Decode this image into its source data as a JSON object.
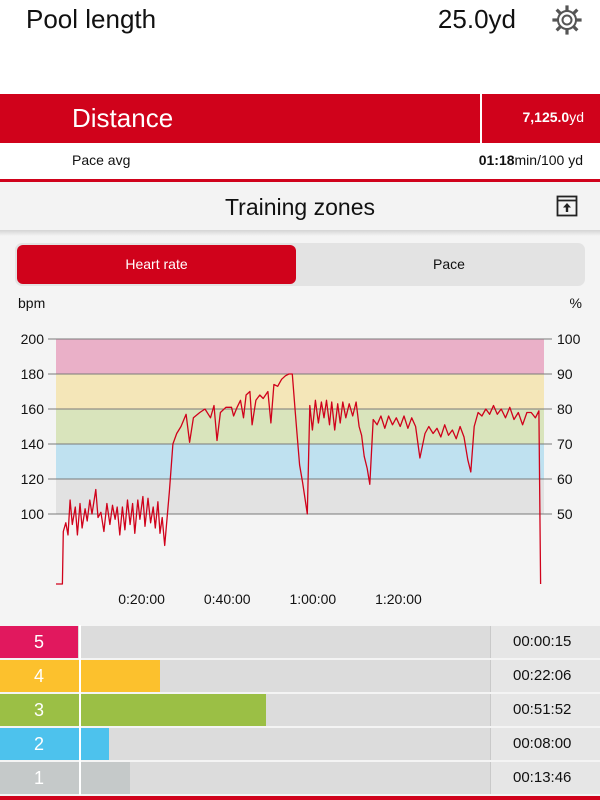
{
  "settings": {
    "pool_label": "Pool length",
    "pool_value": "25.0yd"
  },
  "summary": {
    "distance_label": "Distance",
    "distance_value": "7,125.0",
    "distance_unit": "yd",
    "pace_label": "Pace avg",
    "pace_value": "01:18",
    "pace_unit": "min/100 yd"
  },
  "training_zones": {
    "title": "Training zones",
    "tabs": [
      {
        "label": "Heart rate",
        "selected": true
      },
      {
        "label": "Pace",
        "selected": false
      }
    ]
  },
  "zones": [
    {
      "label": "5",
      "time": "00:00:15",
      "color": "#e1185e",
      "fraction": 0.16
    },
    {
      "label": "4",
      "time": "00:22:06",
      "color": "#fcc12d",
      "fraction": 0.326
    },
    {
      "label": "3",
      "time": "00:51:52",
      "color": "#9bbf45",
      "fraction": 0.543
    },
    {
      "label": "2",
      "time": "00:08:00",
      "color": "#4dc2ed",
      "fraction": 0.222
    },
    {
      "label": "1",
      "time": "00:13:46",
      "color": "#c5c9c9",
      "fraction": 0.265
    }
  ],
  "chart_data": {
    "type": "line",
    "ylabel_left": "bpm",
    "ylabel_right": "%",
    "y_ticks_left": [
      "200",
      "180",
      "160",
      "140",
      "120",
      "100"
    ],
    "y_ticks_right": [
      "100",
      "90",
      "80",
      "70",
      "60",
      "50"
    ],
    "x_ticks": [
      "0:20:00",
      "0:40:00",
      "1:00:00",
      "1:20:00"
    ],
    "ylim": [
      60,
      200
    ],
    "xlim_minutes": [
      0,
      114
    ],
    "zone_bands": [
      {
        "zone": "5",
        "from": 180,
        "to": 200,
        "color": "#eab0c8"
      },
      {
        "zone": "4",
        "from": 160,
        "to": 180,
        "color": "#f4e6b8"
      },
      {
        "zone": "3",
        "from": 140,
        "to": 160,
        "color": "#d9e4bc"
      },
      {
        "zone": "2",
        "from": 120,
        "to": 140,
        "color": "#bfe1f0"
      },
      {
        "zone": "1",
        "from": 100,
        "to": 120,
        "color": "#e2e2e2"
      }
    ],
    "series": [
      {
        "color": "#d0021b",
        "points": [
          [
            0,
            60
          ],
          [
            1.5,
            60
          ],
          [
            1.7,
            90
          ],
          [
            2.3,
            95
          ],
          [
            2.8,
            88
          ],
          [
            3.3,
            108
          ],
          [
            3.8,
            94
          ],
          [
            4.5,
            104
          ],
          [
            5,
            88
          ],
          [
            5.6,
            106
          ],
          [
            6.1,
            92
          ],
          [
            6.8,
            103
          ],
          [
            7.3,
            96
          ],
          [
            7.9,
            108
          ],
          [
            8.4,
            100
          ],
          [
            9.3,
            114
          ],
          [
            9.8,
            98
          ],
          [
            10.5,
            101
          ],
          [
            11.2,
            90
          ],
          [
            11.9,
            106
          ],
          [
            12.6,
            94
          ],
          [
            13.2,
            105
          ],
          [
            13.8,
            97
          ],
          [
            14.3,
            104
          ],
          [
            14.9,
            88
          ],
          [
            15.5,
            104
          ],
          [
            16.1,
            91
          ],
          [
            16.7,
            108
          ],
          [
            17.3,
            94
          ],
          [
            17.9,
            106
          ],
          [
            18.4,
            89
          ],
          [
            19.1,
            108
          ],
          [
            19.6,
            97
          ],
          [
            20.3,
            110
          ],
          [
            20.8,
            93
          ],
          [
            21.5,
            109
          ],
          [
            22.1,
            95
          ],
          [
            22.7,
            104
          ],
          [
            23.2,
            92
          ],
          [
            23.8,
            107
          ],
          [
            24.3,
            89
          ],
          [
            24.8,
            98
          ],
          [
            25.4,
            82
          ],
          [
            26.5,
            113
          ],
          [
            27.3,
            140
          ],
          [
            28.2,
            146
          ],
          [
            29.2,
            150
          ],
          [
            30.4,
            157
          ],
          [
            31.2,
            141
          ],
          [
            32.1,
            155
          ],
          [
            33.6,
            158
          ],
          [
            34.8,
            160
          ],
          [
            36.1,
            155
          ],
          [
            36.9,
            162
          ],
          [
            37.6,
            142
          ],
          [
            38.4,
            158
          ],
          [
            39.7,
            161
          ],
          [
            41,
            161
          ],
          [
            41.5,
            156
          ],
          [
            42.3,
            161
          ],
          [
            43.1,
            165
          ],
          [
            43.8,
            155
          ],
          [
            44.4,
            168
          ],
          [
            45.3,
            170
          ],
          [
            45.8,
            151
          ],
          [
            46.7,
            165
          ],
          [
            47.6,
            168
          ],
          [
            48.4,
            166
          ],
          [
            49.5,
            170
          ],
          [
            50.2,
            152
          ],
          [
            50.9,
            174
          ],
          [
            51.8,
            173
          ],
          [
            52.7,
            177
          ],
          [
            53.6,
            179
          ],
          [
            54.4,
            180
          ],
          [
            55.2,
            180
          ],
          [
            55.9,
            158
          ],
          [
            56.3,
            146
          ],
          [
            56.9,
            128
          ],
          [
            57.6,
            118
          ],
          [
            58.1,
            110
          ],
          [
            58.7,
            100
          ],
          [
            59.3,
            162
          ],
          [
            59.9,
            148
          ],
          [
            60.6,
            165
          ],
          [
            61.3,
            152
          ],
          [
            62,
            164
          ],
          [
            62.6,
            155
          ],
          [
            63.2,
            165
          ],
          [
            63.9,
            151
          ],
          [
            64.4,
            164
          ],
          [
            65.1,
            148
          ],
          [
            65.8,
            163
          ],
          [
            66.4,
            152
          ],
          [
            67,
            164
          ],
          [
            67.7,
            155
          ],
          [
            68.5,
            163
          ],
          [
            69.3,
            156
          ],
          [
            70.1,
            164
          ],
          [
            70.8,
            150
          ],
          [
            71.4,
            145
          ],
          [
            72,
            133
          ],
          [
            72.7,
            126
          ],
          [
            73.3,
            117
          ],
          [
            74.1,
            154
          ],
          [
            75,
            151
          ],
          [
            75.9,
            156
          ],
          [
            76.8,
            149
          ],
          [
            77.7,
            156
          ],
          [
            78.6,
            151
          ],
          [
            79.5,
            155
          ],
          [
            80.4,
            150
          ],
          [
            81.3,
            156
          ],
          [
            82.2,
            149
          ],
          [
            83.1,
            155
          ],
          [
            84,
            150
          ],
          [
            85,
            132
          ],
          [
            86.2,
            146
          ],
          [
            87.1,
            150
          ],
          [
            88.1,
            146
          ],
          [
            89,
            149
          ],
          [
            89.9,
            144
          ],
          [
            90.8,
            151
          ],
          [
            91.7,
            145
          ],
          [
            92.6,
            148
          ],
          [
            93.5,
            143
          ],
          [
            94.4,
            150
          ],
          [
            95.3,
            144
          ],
          [
            96.2,
            131
          ],
          [
            96.9,
            124
          ],
          [
            97.7,
            150
          ],
          [
            98.6,
            158
          ],
          [
            99.5,
            156
          ],
          [
            100.4,
            160
          ],
          [
            101.3,
            157
          ],
          [
            102.2,
            162
          ],
          [
            103.1,
            157
          ],
          [
            104,
            160
          ],
          [
            105,
            155
          ],
          [
            106,
            161
          ],
          [
            107,
            154
          ],
          [
            108,
            158
          ],
          [
            109,
            151
          ],
          [
            110,
            158
          ],
          [
            111,
            158
          ],
          [
            112,
            155
          ],
          [
            112.8,
            159
          ],
          [
            113.2,
            60
          ]
        ]
      }
    ]
  }
}
